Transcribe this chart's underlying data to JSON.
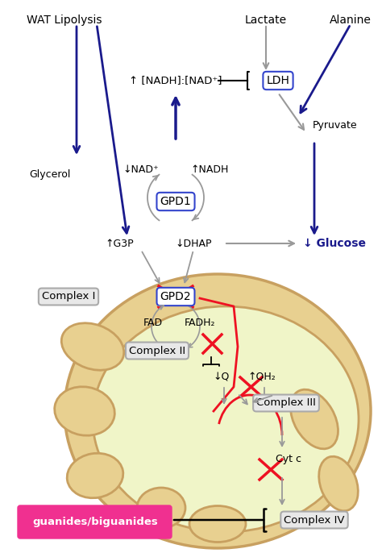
{
  "bg_color": "#ffffff",
  "mito_outer_color": "#c8a060",
  "mito_inner_color": "#f5f5d0",
  "mito_outer_bg": "#e8d8a0",
  "dark_blue": "#1a1a8c",
  "gray_arrow": "#999999",
  "red_cross": "#ee1122",
  "box_bg": "#e8e8e8",
  "box_border": "#888888",
  "blue_box_border": "#3344cc",
  "pink_bg": "#f03090",
  "title_top_left": "WAT Lipolysis",
  "title_top_right_1": "Lactate",
  "title_top_right_2": "Alanine"
}
